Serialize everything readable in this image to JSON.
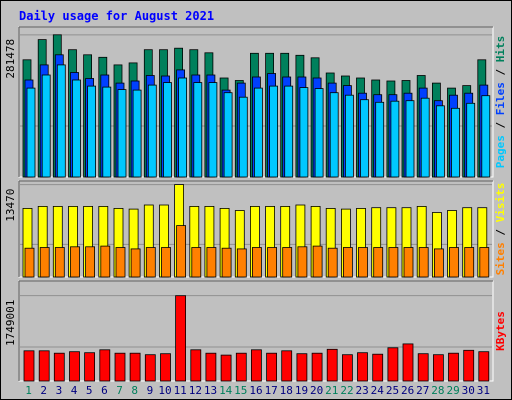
{
  "title": "Daily usage for August 2021",
  "colors": {
    "title": "#0000ff",
    "hits": "#00805c",
    "files": "#0040ff",
    "pages": "#00c8ff",
    "visits": "#ffff00",
    "sites": "#ff8000",
    "kbytes": "#ff0000",
    "weekday": "#000080",
    "weekend": "#00805c",
    "panel": "#c0c0c0",
    "gridline": "#909090"
  },
  "chart_data": [
    {
      "type": "bar",
      "name": "Pages / Files / Hits",
      "legend": [
        "Pages",
        "Files",
        "Hits"
      ],
      "max_label": "281478",
      "ylim": [
        0,
        297000
      ],
      "categories": [
        "1",
        "2",
        "3",
        "4",
        "5",
        "6",
        "7",
        "8",
        "9",
        "10",
        "11",
        "12",
        "13",
        "14",
        "15",
        "16",
        "17",
        "18",
        "19",
        "20",
        "21",
        "22",
        "23",
        "24",
        "25",
        "26",
        "27",
        "28",
        "29",
        "30",
        "31"
      ],
      "series": [
        {
          "name": "Hits",
          "values": [
            232000,
            272000,
            281478,
            252000,
            242000,
            237000,
            222000,
            226000,
            252000,
            252000,
            255000,
            252000,
            246000,
            196000,
            191000,
            245000,
            245000,
            245000,
            241000,
            236000,
            206000,
            200000,
            196000,
            192000,
            190000,
            191000,
            201000,
            186000,
            176000,
            181000,
            232000
          ]
        },
        {
          "name": "Files",
          "values": [
            192000,
            222000,
            242000,
            207000,
            195000,
            202000,
            186000,
            190000,
            201000,
            200000,
            212000,
            202000,
            202000,
            172000,
            186000,
            198000,
            205000,
            198000,
            198000,
            196000,
            186000,
            181000,
            166000,
            163000,
            163000,
            166000,
            176000,
            151000,
            162000,
            166000,
            182000
          ]
        },
        {
          "name": "Pages",
          "values": [
            176000,
            202000,
            222000,
            192000,
            180000,
            178000,
            173000,
            172000,
            182000,
            187000,
            196000,
            187000,
            187000,
            167000,
            158000,
            176000,
            180000,
            180000,
            177000,
            175000,
            167000,
            162000,
            153000,
            148000,
            150000,
            151000,
            156000,
            141000,
            136000,
            146000,
            161000
          ]
        }
      ]
    },
    {
      "type": "bar",
      "name": "Sites / Visits",
      "legend": [
        "Sites",
        "Visits"
      ],
      "max_label": "13470",
      "ylim": [
        0,
        14000
      ],
      "categories": [
        "1",
        "2",
        "3",
        "4",
        "5",
        "6",
        "7",
        "8",
        "9",
        "10",
        "11",
        "12",
        "13",
        "14",
        "15",
        "16",
        "17",
        "18",
        "19",
        "20",
        "21",
        "22",
        "23",
        "24",
        "25",
        "26",
        "27",
        "28",
        "29",
        "30",
        "31"
      ],
      "series": [
        {
          "name": "Visits",
          "values": [
            10000,
            10300,
            10300,
            10300,
            10300,
            10300,
            10000,
            9900,
            10500,
            10500,
            13470,
            10300,
            10300,
            10000,
            9700,
            10300,
            10300,
            10300,
            10500,
            10300,
            10000,
            9900,
            10000,
            10100,
            10100,
            10100,
            10300,
            9400,
            9700,
            10100,
            10100
          ]
        },
        {
          "name": "Sites",
          "values": [
            4200,
            4300,
            4300,
            4400,
            4400,
            4500,
            4300,
            4100,
            4300,
            4300,
            7500,
            4300,
            4300,
            4200,
            4100,
            4300,
            4300,
            4300,
            4400,
            4500,
            4200,
            4300,
            4300,
            4300,
            4300,
            4300,
            4300,
            4100,
            4300,
            4300,
            4300
          ]
        }
      ]
    },
    {
      "type": "bar",
      "name": "KBytes",
      "legend": [
        "KBytes"
      ],
      "max_label": "1749001",
      "ylim": [
        0,
        2050000
      ],
      "categories": [
        "1",
        "2",
        "3",
        "4",
        "5",
        "6",
        "7",
        "8",
        "9",
        "10",
        "11",
        "12",
        "13",
        "14",
        "15",
        "16",
        "17",
        "18",
        "19",
        "20",
        "21",
        "22",
        "23",
        "24",
        "25",
        "26",
        "27",
        "28",
        "29",
        "30",
        "31"
      ],
      "series": [
        {
          "name": "KBytes",
          "values": [
            620000,
            620000,
            570000,
            600000,
            580000,
            640000,
            570000,
            570000,
            540000,
            560000,
            1749001,
            640000,
            570000,
            530000,
            570000,
            640000,
            570000,
            620000,
            560000,
            570000,
            650000,
            540000,
            580000,
            550000,
            680000,
            760000,
            560000,
            540000,
            570000,
            630000,
            600000
          ]
        }
      ]
    }
  ]
}
